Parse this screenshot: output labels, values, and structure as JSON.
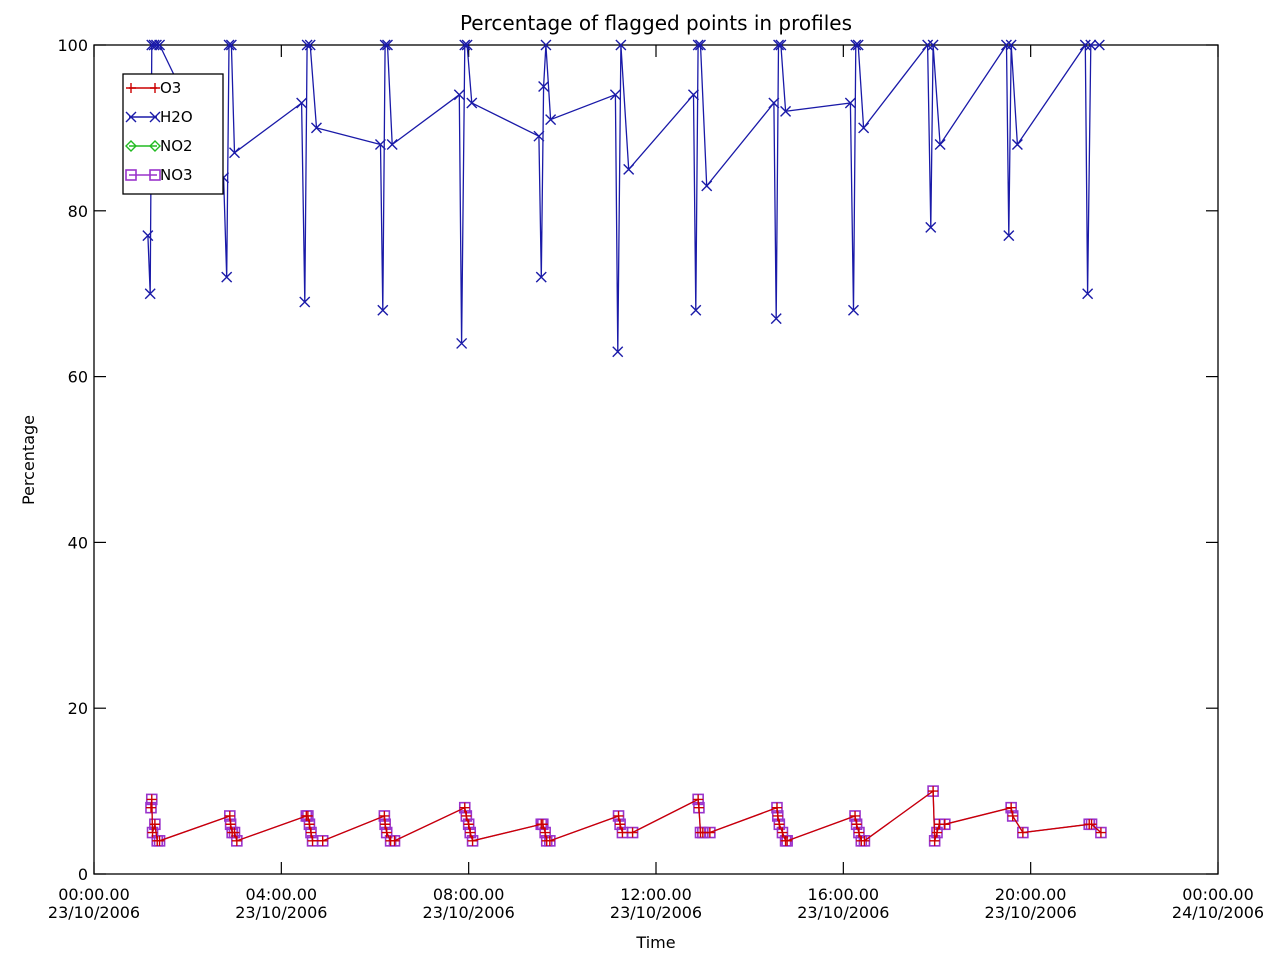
{
  "chart_data": {
    "type": "line",
    "title": "Percentage of flagged points in profiles",
    "xlabel": "Time",
    "ylabel": "Percentage",
    "xlim": [
      "23/10/2006 00:00",
      "24/10/2006 00:00"
    ],
    "ylim": [
      0,
      100
    ],
    "grid": false,
    "legend_position": "top-left",
    "y_ticks": [
      {
        "value": 0,
        "label": "0"
      },
      {
        "value": 20,
        "label": "20"
      },
      {
        "value": 40,
        "label": "40"
      },
      {
        "value": 60,
        "label": "60"
      },
      {
        "value": 80,
        "label": "80"
      },
      {
        "value": 100,
        "label": "100"
      }
    ],
    "x_ticks": [
      {
        "value": "23/10/2006 00:00",
        "line1": "00:00.00",
        "line2": "23/10/2006"
      },
      {
        "value": "23/10/2006 04:00",
        "line1": "04:00.00",
        "line2": "23/10/2006"
      },
      {
        "value": "23/10/2006 08:00",
        "line1": "08:00.00",
        "line2": "23/10/2006"
      },
      {
        "value": "23/10/2006 12:00",
        "line1": "12:00.00",
        "line2": "23/10/2006"
      },
      {
        "value": "23/10/2006 16:00",
        "line1": "16:00.00",
        "line2": "23/10/2006"
      },
      {
        "value": "23/10/2006 20:00",
        "line1": "20:00.00",
        "line2": "23/10/2006"
      },
      {
        "value": "24/10/2006 00:00",
        "line1": "00:00.00",
        "line2": "24/10/2006"
      }
    ],
    "series": [
      {
        "name": "O3",
        "color": "#cc0000",
        "marker": "plus",
        "x": [
          "23/10/2006 01:13",
          "23/10/2006 01:14",
          "23/10/2006 01:15",
          "23/10/2006 01:18",
          "23/10/2006 01:21",
          "23/10/2006 01:24",
          "23/10/2006 02:54",
          "23/10/2006 02:55",
          "23/10/2006 02:57",
          "23/10/2006 03:00",
          "23/10/2006 03:03",
          "23/10/2006 04:32",
          "23/10/2006 04:34",
          "23/10/2006 04:36",
          "23/10/2006 04:38",
          "23/10/2006 04:40",
          "23/10/2006 04:53",
          "23/10/2006 06:12",
          "23/10/2006 06:13",
          "23/10/2006 06:15",
          "23/10/2006 06:20",
          "23/10/2006 06:25",
          "23/10/2006 07:55",
          "23/10/2006 07:57",
          "23/10/2006 08:00",
          "23/10/2006 08:02",
          "23/10/2006 08:05",
          "23/10/2006 09:33",
          "23/10/2006 09:35",
          "23/10/2006 09:38",
          "23/10/2006 09:40",
          "23/10/2006 09:44",
          "23/10/2006 11:12",
          "23/10/2006 11:14",
          "23/10/2006 11:17",
          "23/10/2006 11:30",
          "23/10/2006 12:54",
          "23/10/2006 12:55",
          "23/10/2006 12:57",
          "23/10/2006 13:00",
          "23/10/2006 13:09",
          "23/10/2006 14:35",
          "23/10/2006 14:36",
          "23/10/2006 14:38",
          "23/10/2006 14:42",
          "23/10/2006 14:46",
          "23/10/2006 14:48",
          "23/10/2006 16:15",
          "23/10/2006 16:17",
          "23/10/2006 16:20",
          "23/10/2006 16:23",
          "23/10/2006 16:27",
          "23/10/2006 17:55",
          "23/10/2006 17:57",
          "23/10/2006 18:00",
          "23/10/2006 18:03",
          "23/10/2006 18:10",
          "23/10/2006 19:35",
          "23/10/2006 19:37",
          "23/10/2006 19:50",
          "23/10/2006 21:15",
          "23/10/2006 21:18",
          "23/10/2006 21:30"
        ],
        "values": [
          8,
          9,
          5,
          6,
          4,
          4,
          7,
          6,
          5,
          5,
          4,
          7,
          7,
          6,
          5,
          4,
          4,
          7,
          6,
          5,
          4,
          4,
          8,
          7,
          6,
          5,
          4,
          6,
          6,
          5,
          4,
          4,
          7,
          6,
          5,
          5,
          9,
          8,
          5,
          5,
          5,
          8,
          7,
          6,
          5,
          4,
          4,
          7,
          6,
          5,
          4,
          4,
          10,
          4,
          5,
          6,
          6,
          8,
          7,
          5,
          6,
          6,
          5
        ]
      },
      {
        "name": "H2O",
        "color": "#1a1aa8",
        "marker": "x",
        "x": [
          "23/10/2006 01:09",
          "23/10/2006 01:12",
          "23/10/2006 01:14",
          "23/10/2006 01:17",
          "23/10/2006 01:20",
          "23/10/2006 01:24",
          "23/10/2006 02:46",
          "23/10/2006 02:50",
          "23/10/2006 02:53",
          "23/10/2006 02:56",
          "23/10/2006 03:00",
          "23/10/2006 04:26",
          "23/10/2006 04:30",
          "23/10/2006 04:33",
          "23/10/2006 04:37",
          "23/10/2006 04:45",
          "23/10/2006 06:07",
          "23/10/2006 06:10",
          "23/10/2006 06:13",
          "23/10/2006 06:16",
          "23/10/2006 06:22",
          "23/10/2006 07:48",
          "23/10/2006 07:51",
          "23/10/2006 07:55",
          "23/10/2006 07:58",
          "23/10/2006 08:04",
          "23/10/2006 09:30",
          "23/10/2006 09:33",
          "23/10/2006 09:36",
          "23/10/2006 09:39",
          "23/10/2006 09:45",
          "23/10/2006 11:08",
          "23/10/2006 11:11",
          "23/10/2006 11:15",
          "23/10/2006 11:25",
          "23/10/2006 12:48",
          "23/10/2006 12:51",
          "23/10/2006 12:54",
          "23/10/2006 12:57",
          "23/10/2006 13:05",
          "23/10/2006 14:31",
          "23/10/2006 14:34",
          "23/10/2006 14:37",
          "23/10/2006 14:40",
          "23/10/2006 14:46",
          "23/10/2006 16:09",
          "23/10/2006 16:13",
          "23/10/2006 16:16",
          "23/10/2006 16:19",
          "23/10/2006 16:26",
          "23/10/2006 17:48",
          "23/10/2006 17:52",
          "23/10/2006 17:55",
          "23/10/2006 18:04",
          "23/10/2006 19:29",
          "23/10/2006 19:32",
          "23/10/2006 19:35",
          "23/10/2006 19:43",
          "23/10/2006 21:10",
          "23/10/2006 21:13",
          "23/10/2006 21:17",
          "23/10/2006 21:28"
        ],
        "values": [
          77,
          70,
          100,
          100,
          100,
          100,
          84,
          72,
          100,
          100,
          87,
          93,
          69,
          100,
          100,
          90,
          88,
          68,
          100,
          100,
          88,
          94,
          64,
          100,
          100,
          93,
          89,
          72,
          95,
          100,
          91,
          94,
          63,
          100,
          85,
          94,
          68,
          100,
          100,
          83,
          93,
          67,
          100,
          100,
          92,
          93,
          68,
          100,
          100,
          90,
          100,
          78,
          100,
          88,
          100,
          77,
          100,
          88,
          100,
          70,
          100,
          100
        ]
      },
      {
        "name": "NO2",
        "color": "#22bb22",
        "marker": "diamond",
        "x": [],
        "values": []
      },
      {
        "name": "NO3",
        "color": "#9a33cc",
        "marker": "square",
        "x": [
          "23/10/2006 01:13",
          "23/10/2006 01:14",
          "23/10/2006 01:15",
          "23/10/2006 01:18",
          "23/10/2006 01:21",
          "23/10/2006 01:24",
          "23/10/2006 02:54",
          "23/10/2006 02:55",
          "23/10/2006 02:57",
          "23/10/2006 03:00",
          "23/10/2006 03:03",
          "23/10/2006 04:32",
          "23/10/2006 04:34",
          "23/10/2006 04:36",
          "23/10/2006 04:38",
          "23/10/2006 04:40",
          "23/10/2006 04:53",
          "23/10/2006 06:12",
          "23/10/2006 06:13",
          "23/10/2006 06:15",
          "23/10/2006 06:20",
          "23/10/2006 06:25",
          "23/10/2006 07:55",
          "23/10/2006 07:57",
          "23/10/2006 08:00",
          "23/10/2006 08:02",
          "23/10/2006 08:05",
          "23/10/2006 09:33",
          "23/10/2006 09:35",
          "23/10/2006 09:38",
          "23/10/2006 09:40",
          "23/10/2006 09:44",
          "23/10/2006 11:12",
          "23/10/2006 11:14",
          "23/10/2006 11:17",
          "23/10/2006 11:30",
          "23/10/2006 12:54",
          "23/10/2006 12:55",
          "23/10/2006 12:57",
          "23/10/2006 13:00",
          "23/10/2006 13:09",
          "23/10/2006 14:35",
          "23/10/2006 14:36",
          "23/10/2006 14:38",
          "23/10/2006 14:42",
          "23/10/2006 14:46",
          "23/10/2006 14:48",
          "23/10/2006 16:15",
          "23/10/2006 16:17",
          "23/10/2006 16:20",
          "23/10/2006 16:23",
          "23/10/2006 16:27",
          "23/10/2006 17:55",
          "23/10/2006 17:57",
          "23/10/2006 18:00",
          "23/10/2006 18:03",
          "23/10/2006 18:10",
          "23/10/2006 19:35",
          "23/10/2006 19:37",
          "23/10/2006 19:50",
          "23/10/2006 21:15",
          "23/10/2006 21:18",
          "23/10/2006 21:30"
        ],
        "values": [
          8,
          9,
          5,
          6,
          4,
          4,
          7,
          6,
          5,
          5,
          4,
          7,
          7,
          6,
          5,
          4,
          4,
          7,
          6,
          5,
          4,
          4,
          8,
          7,
          6,
          5,
          4,
          6,
          6,
          5,
          4,
          4,
          7,
          6,
          5,
          5,
          9,
          8,
          5,
          5,
          5,
          8,
          7,
          6,
          5,
          4,
          4,
          7,
          6,
          5,
          4,
          4,
          10,
          4,
          5,
          6,
          6,
          8,
          7,
          5,
          6,
          6,
          5
        ]
      }
    ]
  }
}
